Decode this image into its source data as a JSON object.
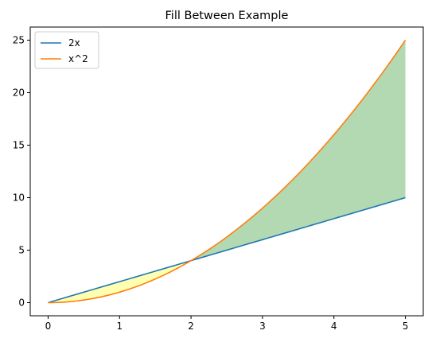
{
  "chart_data": {
    "type": "line",
    "title": "Fill Between Example",
    "xlabel": "",
    "ylabel": "",
    "xlim": [
      -0.25,
      5.25
    ],
    "ylim": [
      -1.25,
      26.25
    ],
    "xticks": [
      0,
      1,
      2,
      3,
      4,
      5
    ],
    "yticks": [
      0,
      5,
      10,
      15,
      20,
      25
    ],
    "grid": false,
    "legend_position": "top-left",
    "series": [
      {
        "name": "2x",
        "color": "#1f77b4",
        "function": "2x",
        "x_range": [
          0,
          5
        ]
      },
      {
        "name": "x^2",
        "color": "#ff7f0e",
        "function": "x^2",
        "x_range": [
          0,
          5
        ]
      }
    ],
    "fills": [
      {
        "between": [
          "2x",
          "x^2"
        ],
        "where": "2x >= x^2",
        "x_range": [
          0,
          2
        ],
        "color": "#ffff00",
        "opacity": 0.3
      },
      {
        "between": [
          "2x",
          "x^2"
        ],
        "where": "2x <= x^2",
        "x_range": [
          2,
          5
        ],
        "color": "#008000",
        "opacity": 0.3
      }
    ]
  }
}
